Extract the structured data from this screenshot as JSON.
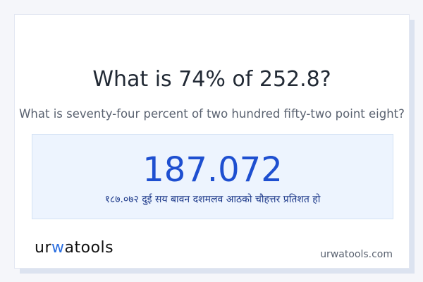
{
  "title": "What is 74% of 252.8?",
  "subtitle": "What is seventy-four percent of two hundred fifty-two point eight?",
  "result": {
    "value": "187.072",
    "words": "१८७.०७२ दुई सय बावन दशमलव आठको चौहत्तर प्रतिशत हो"
  },
  "logo": {
    "part1": "ur",
    "part2": "w",
    "part3": "atools"
  },
  "site": "urwatools.com",
  "colors": {
    "accent": "#1e4fd0",
    "result_bg": "#edf4fe"
  }
}
